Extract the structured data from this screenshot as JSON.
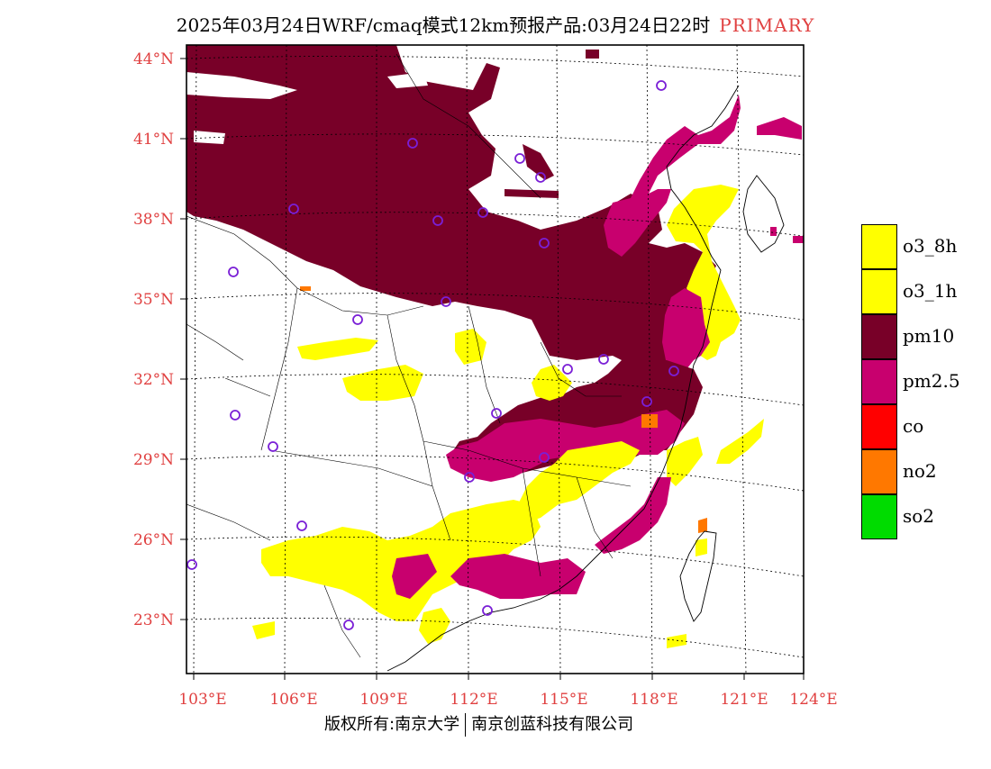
{
  "header": {
    "title": "2025年03月24日WRF/cmaq模式12km预报产品:03月24日22时",
    "tag": "PRIMARY"
  },
  "axes": {
    "lat_labels": [
      "44°N",
      "41°N",
      "38°N",
      "35°N",
      "32°N",
      "29°N",
      "26°N",
      "23°N"
    ],
    "lon_labels": [
      "103°E",
      "106°E",
      "109°E",
      "112°E",
      "115°E",
      "118°E",
      "121°E",
      "124°E"
    ]
  },
  "legend": {
    "items": [
      {
        "label": "o3_8h",
        "color": "#ffff00"
      },
      {
        "label": "o3_1h",
        "color": "#ffff00"
      },
      {
        "label": "pm10",
        "color": "#780028"
      },
      {
        "label": "pm2.5",
        "color": "#c8006e"
      },
      {
        "label": "co",
        "color": "#ff0000"
      },
      {
        "label": "no2",
        "color": "#ff7800"
      },
      {
        "label": "so2",
        "color": "#00dc00"
      }
    ]
  },
  "footer": {
    "left": "版权所有:南京大学",
    "right": "南京创蓝科技有限公司"
  },
  "colors": {
    "pm10": "#780028",
    "pm25": "#c8006e",
    "o3": "#ffff00",
    "no2": "#ff7800",
    "station": "#7a1fd6",
    "axis_label": "#e04040"
  }
}
